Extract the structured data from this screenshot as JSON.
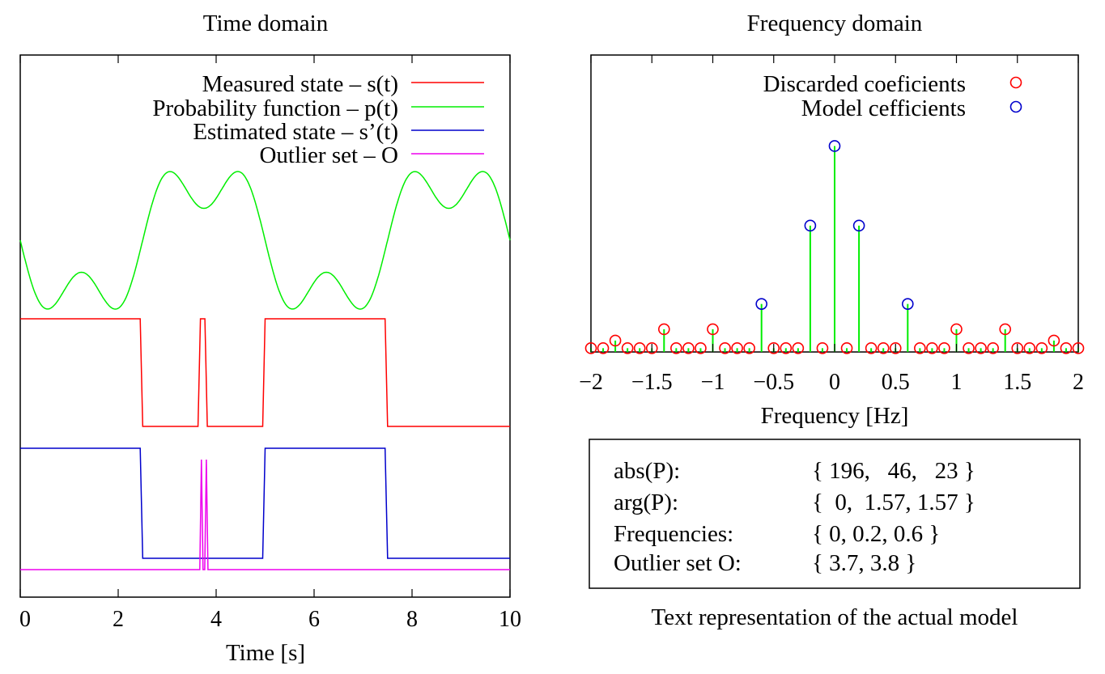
{
  "chart_data": [
    {
      "type": "line",
      "title": "Time domain",
      "xlabel": "Time [s]",
      "ylabel": "",
      "xlim": [
        0,
        10
      ],
      "xticks": [
        "0",
        "2",
        "4",
        "6",
        "8",
        "10"
      ],
      "legend_position": "top-right",
      "series": [
        {
          "name": "Measured state – s(t)",
          "color": "#ff0000",
          "x": [
            0,
            2.45,
            2.5,
            3.63,
            3.68,
            3.77,
            3.82,
            4.95,
            5.0,
            7.45,
            7.5,
            10
          ],
          "y": [
            1,
            1,
            0,
            0,
            1,
            1,
            0,
            0,
            1,
            1,
            0,
            0
          ]
        },
        {
          "name": "Probability function – p(t)",
          "color": "#00ee00",
          "model": {
            "terms": [
              {
                "amp": 196,
                "phase": 0,
                "freq": 0
              },
              {
                "amp": 46,
                "phase": 1.57,
                "freq": 0.2
              },
              {
                "amp": 23,
                "phase": 1.57,
                "freq": 0.6
              }
            ]
          }
        },
        {
          "name": "Estimated state – s’(t)",
          "color": "#0000cc",
          "x": [
            0,
            2.45,
            2.5,
            4.95,
            5.0,
            7.45,
            7.5,
            10
          ],
          "y": [
            1,
            1,
            0,
            0,
            1,
            1,
            0,
            0
          ]
        },
        {
          "name": "Outlier set – O",
          "color": "#ee00ee",
          "spikes": [
            3.7,
            3.8
          ],
          "baseline": 0
        }
      ]
    },
    {
      "type": "scatter",
      "title": "Frequency domain",
      "xlabel": "Frequency [Hz]",
      "ylabel": "",
      "xlim": [
        -2,
        2
      ],
      "ylim": [
        0,
        235
      ],
      "xticks": [
        "−2",
        "−1.5",
        "−1",
        "−0.5",
        "0",
        "0.5",
        "1",
        "1.5",
        "2"
      ],
      "legend_position": "top-right",
      "stem_color": "#00ee00",
      "series": [
        {
          "name": "Discarded coeficients",
          "color": "#ff0000",
          "x": [
            -2.0,
            -1.9,
            -1.8,
            -1.7,
            -1.6,
            -1.5,
            -1.4,
            -1.3,
            -1.2,
            -1.1,
            -1.0,
            -0.9,
            -0.8,
            -0.7,
            -0.5,
            -0.4,
            -0.3,
            -0.1,
            0.1,
            0.3,
            0.4,
            0.5,
            0.7,
            0.8,
            0.9,
            1.0,
            1.1,
            1.2,
            1.3,
            1.4,
            1.5,
            1.6,
            1.7,
            1.8,
            1.9,
            2.0
          ],
          "y": [
            3,
            3,
            9,
            3,
            3,
            3,
            18,
            3,
            3,
            3,
            18,
            3,
            3,
            3,
            3,
            3,
            3,
            3,
            3,
            3,
            3,
            3,
            3,
            3,
            3,
            18,
            3,
            3,
            3,
            18,
            3,
            3,
            3,
            9,
            3,
            3
          ]
        },
        {
          "name": "Model cefficients",
          "color": "#0000cc",
          "x": [
            -0.6,
            -0.2,
            0.0,
            0.2,
            0.6
          ],
          "y": [
            38,
            100,
            163,
            100,
            38
          ]
        }
      ]
    }
  ],
  "text_box": {
    "caption": "Text representation of the actual model",
    "rows": [
      {
        "label": "abs(P):",
        "value": "{ 196,   46,   23 }"
      },
      {
        "label": "arg(P):",
        "value": "{  0,  1.57, 1.57 }"
      },
      {
        "label": "Frequencies:",
        "value": "{ 0, 0.2, 0.6 }"
      },
      {
        "label": "Outlier set O:",
        "value": "{ 3.7, 3.8 }"
      }
    ]
  }
}
